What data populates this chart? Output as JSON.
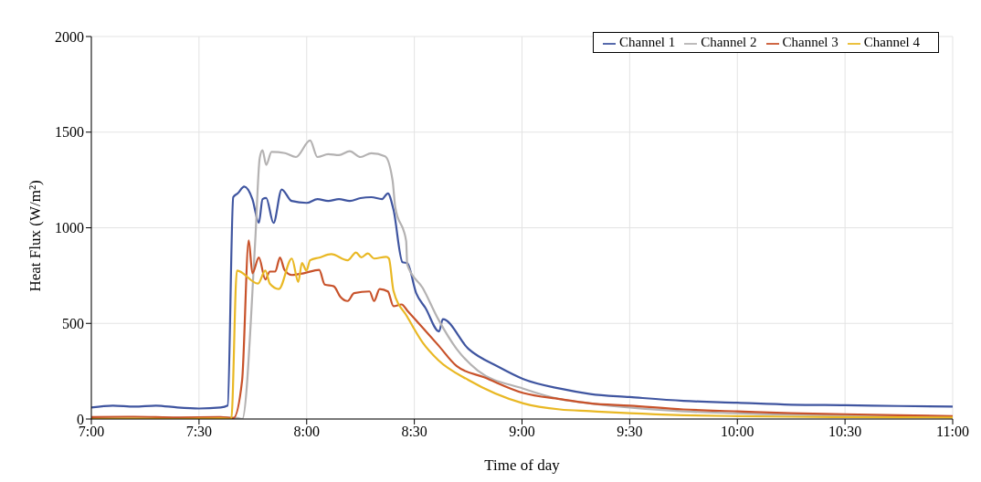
{
  "chart_data": {
    "type": "line",
    "xlabel": "Time of day",
    "ylabel": "Heat Flux (W/m²)",
    "xlim": [
      7,
      11
    ],
    "xticks": [
      {
        "value": 7,
        "label": "7:00"
      },
      {
        "value": 7.5,
        "label": "7:30"
      },
      {
        "value": 8,
        "label": "8:00"
      },
      {
        "value": 8.5,
        "label": "8:30"
      },
      {
        "value": 9,
        "label": "9:00"
      },
      {
        "value": 9.5,
        "label": "9:30"
      },
      {
        "value": 10,
        "label": "10:00"
      },
      {
        "value": 10.5,
        "label": "10:30"
      },
      {
        "value": 11,
        "label": "11:00"
      }
    ],
    "ylim": [
      0,
      2000
    ],
    "yticks": [
      0,
      500,
      1000,
      1500,
      2000
    ],
    "grid": true,
    "legend": "top right",
    "marker": "none",
    "line_style": "solid",
    "series": [
      {
        "name": "Channel 1",
        "color": "#3f55a0",
        "x": [
          7,
          7.1,
          7.2,
          7.3,
          7.4,
          7.5,
          7.6,
          7.633,
          7.659,
          7.68,
          7.71,
          7.748,
          7.778,
          7.795,
          7.812,
          7.846,
          7.884,
          7.93,
          8.0,
          8.05,
          8.1,
          8.15,
          8.2,
          8.25,
          8.3,
          8.35,
          8.377,
          8.403,
          8.445,
          8.467,
          8.509,
          8.552,
          8.615,
          8.632,
          8.751,
          8.892,
          9.006,
          9.176,
          9.317,
          9.5,
          9.75,
          10,
          10.25,
          10.5,
          10.75,
          11
        ],
        "values": [
          60,
          70,
          65,
          70,
          60,
          55,
          60,
          70,
          1160,
          1180,
          1215,
          1150,
          1025,
          1150,
          1156,
          1025,
          1200,
          1140,
          1130,
          1150,
          1140,
          1150,
          1140,
          1155,
          1160,
          1150,
          1180,
          1095,
          820,
          815,
          657,
          580,
          458,
          522,
          367,
          272,
          209,
          159,
          131,
          115,
          95,
          85,
          75,
          72,
          68,
          65
        ]
      },
      {
        "name": "Channel 2",
        "color": "#b4b2b2",
        "x": [
          7,
          7.2,
          7.4,
          7.6,
          7.68,
          7.701,
          7.761,
          7.782,
          7.795,
          7.812,
          7.837,
          7.9,
          7.95,
          8.016,
          8.05,
          8.1,
          8.15,
          8.2,
          8.25,
          8.3,
          8.364,
          8.399,
          8.411,
          8.462,
          8.467,
          8.539,
          8.611,
          8.696,
          8.794,
          9.006,
          9.176,
          9.317,
          9.5,
          9.75,
          10,
          10.25,
          10.5,
          10.75,
          11
        ],
        "values": [
          5,
          8,
          5,
          8,
          5,
          0,
          930,
          1365,
          1405,
          1329,
          1397,
          1390,
          1370,
          1456,
          1370,
          1385,
          1380,
          1400,
          1370,
          1390,
          1374,
          1247,
          1111,
          930,
          807,
          685,
          522,
          367,
          254,
          159,
          104,
          82,
          60,
          40,
          30,
          22,
          20,
          15,
          10
        ]
      },
      {
        "name": "Channel 3",
        "color": "#c8522a",
        "x": [
          7,
          7.2,
          7.4,
          7.6,
          7.66,
          7.68,
          7.7,
          7.731,
          7.748,
          7.778,
          7.808,
          7.829,
          7.854,
          7.876,
          7.897,
          7.931,
          7.986,
          8.058,
          8.084,
          8.126,
          8.156,
          8.19,
          8.22,
          8.292,
          8.313,
          8.339,
          8.377,
          8.403,
          8.441,
          8.467,
          8.611,
          8.696,
          8.824,
          9.006,
          9.176,
          9.317,
          9.5,
          9.75,
          10,
          10.25,
          10.5,
          10.75,
          11
        ],
        "values": [
          10,
          12,
          8,
          10,
          5,
          null,
          200,
          934,
          762,
          844,
          730,
          771,
          771,
          844,
          780,
          753,
          762,
          780,
          703,
          694,
          640,
          617,
          658,
          667,
          617,
          680,
          667,
          590,
          599,
          567,
          386,
          277,
          218,
          136,
          104,
          82,
          70,
          50,
          40,
          30,
          25,
          20,
          15
        ]
      },
      {
        "name": "Channel 4",
        "color": "#e9b824",
        "x": [
          7,
          7.2,
          7.4,
          7.6,
          7.65,
          7.676,
          7.774,
          7.808,
          7.829,
          7.871,
          7.931,
          7.961,
          7.978,
          7.999,
          8.016,
          8.058,
          8.114,
          8.19,
          8.229,
          8.254,
          8.284,
          8.313,
          8.369,
          8.382,
          8.403,
          8.467,
          8.539,
          8.611,
          8.751,
          9.006,
          9.176,
          9.317,
          9.5,
          9.75,
          10,
          10.25,
          10.5,
          10.75,
          11
        ],
        "values": [
          0,
          2,
          0,
          3,
          0,
          776,
          708,
          776,
          708,
          680,
          839,
          717,
          816,
          776,
          830,
          844,
          862,
          830,
          871,
          845,
          866,
          839,
          848,
          839,
          671,
          535,
          399,
          308,
          204,
          82,
          50,
          41,
          30,
          20,
          15,
          12,
          10,
          9,
          8
        ]
      }
    ]
  }
}
